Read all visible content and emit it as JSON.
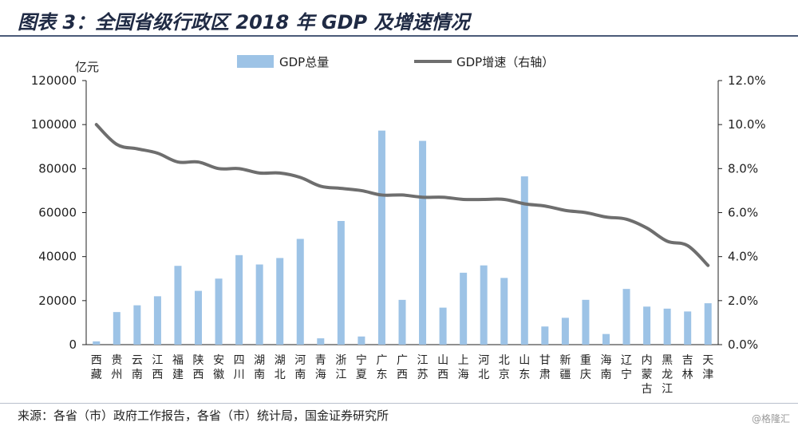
{
  "header": {
    "title": "图表 3：全国省级行政区 2018 年 GDP 及增速情况"
  },
  "footer": {
    "source": "来源：各省（市）政府工作报告，各省（市）统计局，国金证券研究所",
    "watermark": "@格隆汇"
  },
  "chart_data": {
    "type": "bar+line",
    "title": "全国省级行政区 2018 年 GDP 及增速情况",
    "ylabel": "亿元",
    "ylim": [
      0,
      120000
    ],
    "yticks": [
      "0",
      "20000",
      "40000",
      "60000",
      "80000",
      "100000",
      "120000"
    ],
    "y2lim": [
      0,
      12
    ],
    "y2ticks": [
      "0.0%",
      "2.0%",
      "4.0%",
      "6.0%",
      "8.0%",
      "10.0%",
      "12.0%"
    ],
    "legend": [
      "GDP总量",
      "GDP增速（右轴）"
    ],
    "categories": [
      "西藏",
      "贵州",
      "云南",
      "江西",
      "福建",
      "陕西",
      "安徽",
      "四川",
      "湖南",
      "湖北",
      "河南",
      "青海",
      "浙江",
      "宁夏",
      "广东",
      "广西",
      "江苏",
      "山西",
      "上海",
      "河北",
      "北京",
      "山东",
      "甘肃",
      "新疆",
      "重庆",
      "海南",
      "辽宁",
      "内蒙古",
      "黑龙江",
      "吉林",
      "天津"
    ],
    "series": [
      {
        "name": "GDP总量",
        "type": "bar",
        "axis": "left",
        "values": [
          1478,
          14806,
          17881,
          21985,
          35804,
          24438,
          30007,
          40678,
          36426,
          39367,
          48056,
          2865,
          56197,
          3705,
          97278,
          20353,
          92595,
          16818,
          32680,
          36010,
          30320,
          76470,
          8246,
          12199,
          20363,
          4832,
          25315,
          17289,
          16362,
          15075,
          18810
        ]
      },
      {
        "name": "GDP增速（右轴）",
        "type": "line",
        "axis": "right",
        "values": [
          10.0,
          9.1,
          8.9,
          8.7,
          8.3,
          8.3,
          8.0,
          8.0,
          7.8,
          7.8,
          7.6,
          7.2,
          7.1,
          7.0,
          6.8,
          6.8,
          6.7,
          6.7,
          6.6,
          6.6,
          6.6,
          6.4,
          6.3,
          6.1,
          6.0,
          5.8,
          5.7,
          5.3,
          4.7,
          4.5,
          3.6
        ]
      }
    ],
    "colors": {
      "bar": "#9dc3e6",
      "line": "#6e6e6e"
    }
  }
}
